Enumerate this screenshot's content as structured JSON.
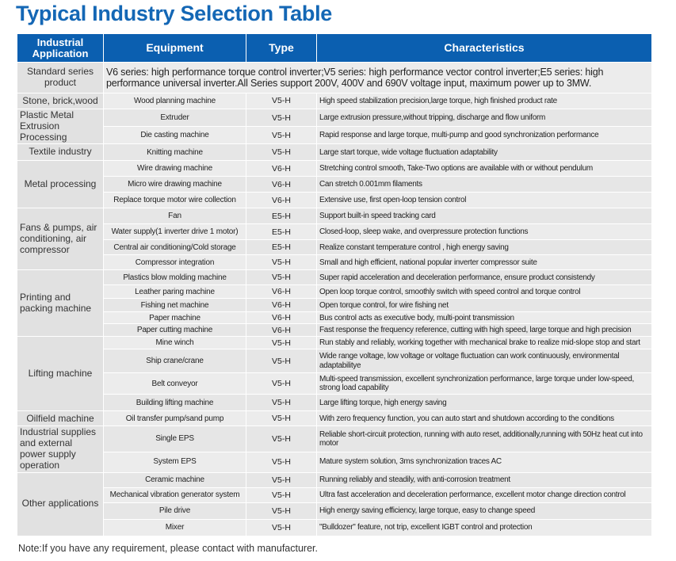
{
  "title": "Typical Industry Selection Table",
  "headers": {
    "application": "Industrial Application",
    "equipment": "Equipment",
    "type": "Type",
    "characteristics": "Characteristics"
  },
  "standard": {
    "application": "Standard series product",
    "text": "V6 series: high performance torque control inverter;V5 series: high performance vector control inverter;E5 series: high performance universal inverter.All Series support 200V, 400V and 690V voltage input, maximum power up to 3MW."
  },
  "groups": [
    {
      "application": "Stone, brick,wood",
      "rows": [
        {
          "equipment": "Wood planning machine",
          "type": "V5-H",
          "characteristics": "High speed stabilization precision,large torque, high finished product rate"
        }
      ]
    },
    {
      "application": "Plastic Metal Extrusion Processing",
      "rows": [
        {
          "equipment": "Extruder",
          "type": "V5-H",
          "characteristics": "Large extrusion pressure,without tripping, discharge and flow uniform"
        },
        {
          "equipment": "Die casting machine",
          "type": "V5-H",
          "characteristics": "Rapid response and large torque, multi-pump and good synchronization performance"
        }
      ]
    },
    {
      "application": "Textile industry",
      "rows": [
        {
          "equipment": "Knitting machine",
          "type": "V5-H",
          "characteristics": "Large start torque, wide voltage fluctuation adaptability"
        }
      ]
    },
    {
      "application": "Metal processing",
      "rows": [
        {
          "equipment": "Wire drawing machine",
          "type": "V6-H",
          "characteristics": "Stretching control smooth, Take-Two options are available with or without pendulum"
        },
        {
          "equipment": "Micro wire drawing machine",
          "type": "V6-H",
          "characteristics": "Can stretch 0.001mm filaments"
        },
        {
          "equipment": "Replace torque motor wire collection",
          "type": "V6-H",
          "characteristics": "Extensive use, first open-loop tension control"
        }
      ]
    },
    {
      "application": "Fans & pumps, air conditioning, air compressor",
      "rows": [
        {
          "equipment": "Fan",
          "type": "E5-H",
          "characteristics": "Support built-in speed tracking card"
        },
        {
          "equipment": "Water supply(1 inverter drive 1 motor)",
          "type": "E5-H",
          "characteristics": "Closed-loop, sleep wake, and overpressure protection functions"
        },
        {
          "equipment": "Central air conditioning/Cold storage",
          "type": "E5-H",
          "characteristics": "Realize constant temperature control , high energy saving"
        },
        {
          "equipment": "Compressor integration",
          "type": "V5-H",
          "characteristics": "Small and high efficient, national popular inverter compressor suite"
        }
      ]
    },
    {
      "application": "Printing and packing machine",
      "rows": [
        {
          "equipment": "Plastics blow molding machine",
          "type": "V5-H",
          "characteristics": "Super rapid acceleration and deceleration performance, ensure product consistendy"
        },
        {
          "equipment": "Leather paring machine",
          "type": "V6-H",
          "characteristics": "Open loop torque control, smoothly switch with speed control and torque control"
        },
        {
          "equipment": "Fishing net machine",
          "type": "V6-H",
          "characteristics": "Open torque control, for wire fishing net"
        },
        {
          "equipment": "Paper machine",
          "type": "V6-H",
          "characteristics": "Bus control acts as executive body, multi-point transmission"
        },
        {
          "equipment": "Paper cutting machine",
          "type": "V6-H",
          "characteristics": "Fast response the frequency reference, cutting with high speed, large torque and high precision"
        }
      ]
    },
    {
      "application": "Lifting machine",
      "rows": [
        {
          "equipment": "Mine winch",
          "type": "V5-H",
          "characteristics": "Run stably and reliably, working together with mechanical brake to realize mid-slope stop and start"
        },
        {
          "equipment": "Ship crane/crane",
          "type": "V5-H",
          "characteristics": "Wide range voltage, low voltage or voltage fluctuation can work continuously, environmental adaptabilitye"
        },
        {
          "equipment": "Belt conveyor",
          "type": "V5-H",
          "characteristics": "Multi-speed transmission, excellent synchronization performance, large torque under low-speed, strong load capability"
        },
        {
          "equipment": "Building lifting machine",
          "type": "V5-H",
          "characteristics": "Large lifting torque, high energy saving"
        }
      ]
    },
    {
      "application": "Oilfield machine",
      "rows": [
        {
          "equipment": "Oil transfer pump/sand pump",
          "type": "V5-H",
          "characteristics": "With zero frequency function, you can auto start and shutdown according to the conditions"
        }
      ]
    },
    {
      "application": "Industrial supplies and external power supply operation",
      "rows": [
        {
          "equipment": "Single EPS",
          "type": "V5-H",
          "characteristics": "Reliable short-circuit protection, running with auto reset, additionally,running with 50Hz heat cut into motor"
        },
        {
          "equipment": "System EPS",
          "type": "V5-H",
          "characteristics": "Mature system solution, 3ms synchronization traces AC"
        }
      ]
    },
    {
      "application": "Other applications",
      "rows": [
        {
          "equipment": "Ceramic machine",
          "type": "V5-H",
          "characteristics": "Running reliably and steadily, with anti-corrosion treatment"
        },
        {
          "equipment": "Mechanical vibration generator system",
          "type": "V5-H",
          "characteristics": "Ultra fast acceleration and deceleration performance, excellent motor change direction control"
        },
        {
          "equipment": "Pile drive",
          "type": "V5-H",
          "characteristics": "High energy saving efficiency, large torque, easy to change speed"
        },
        {
          "equipment": "Mixer",
          "type": "V5-H",
          "characteristics": "\"Bulldozer\" feature, not trip, excellent IGBT control and protection"
        }
      ]
    }
  ],
  "note": "Note:If you have any requirement, please contact with manufacturer."
}
